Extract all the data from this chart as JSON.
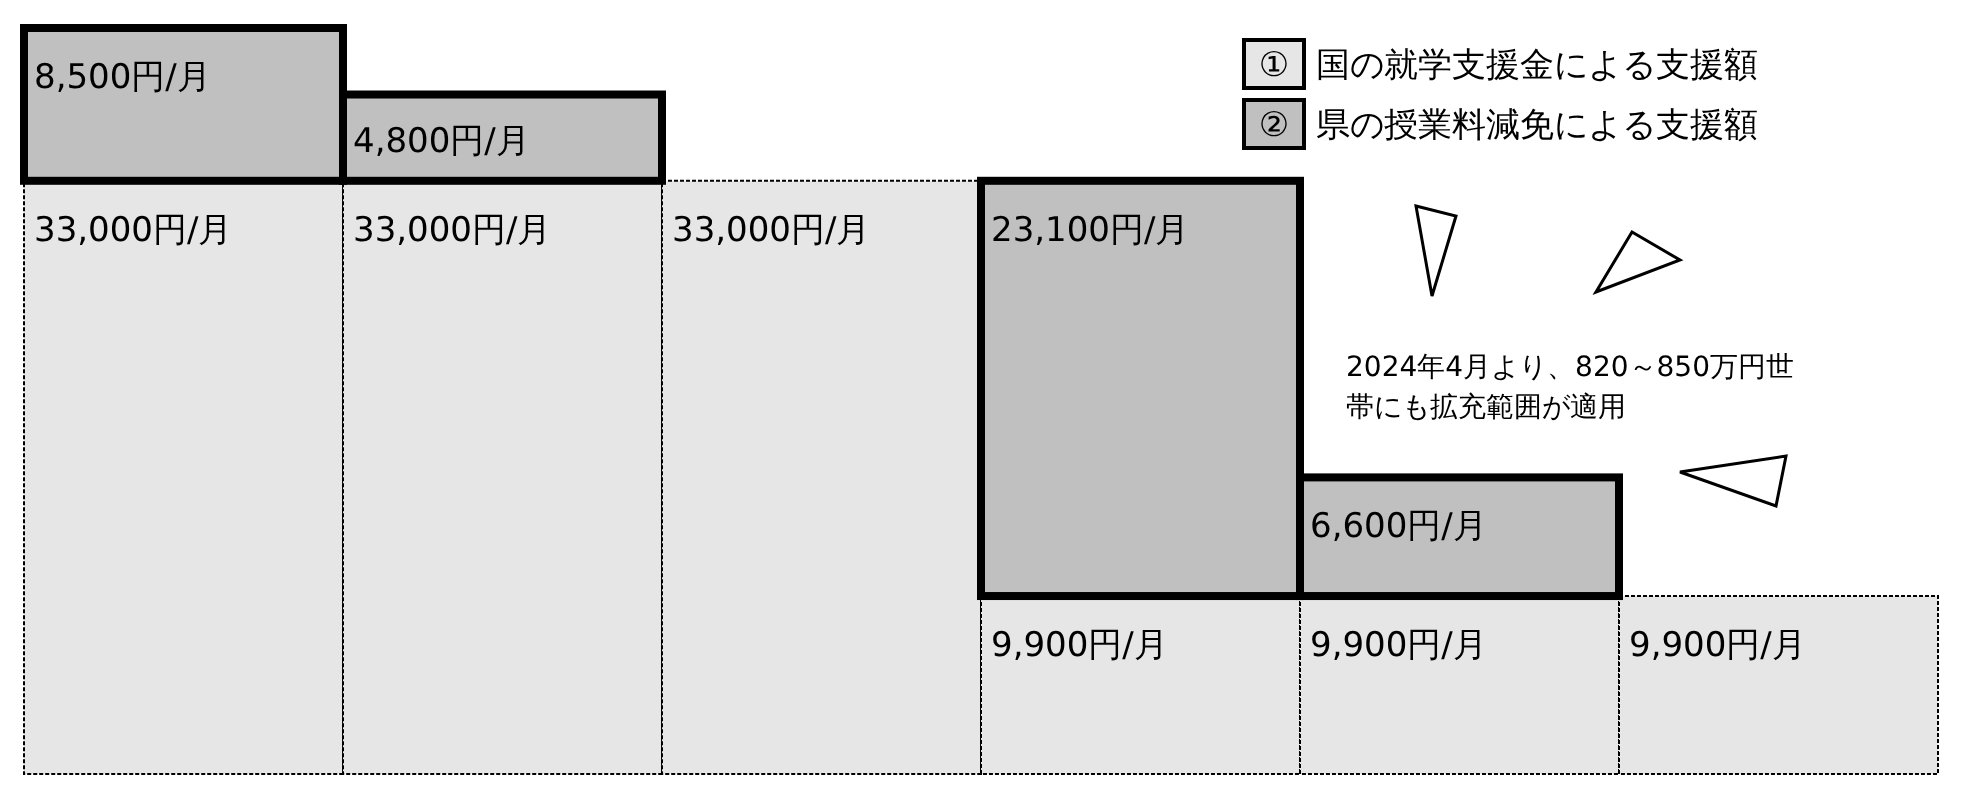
{
  "chart_data": {
    "type": "bar",
    "stacked": true,
    "legend": "top right",
    "categories": [
      null,
      null,
      null,
      null,
      null,
      null
    ],
    "series": [
      {
        "name": "国の就学支援金による支援額",
        "color": "#e6e6e6",
        "values": [
          33000,
          33000,
          33000,
          9900,
          9900,
          9900
        ],
        "value_labels": [
          "33,000円/月",
          "33,000円/月",
          "33,000円/月",
          "9,900円/月",
          "9,900円/月",
          "9,900円/月"
        ]
      },
      {
        "name": "県の授業料減免による支援額",
        "color": "#c0c0c0",
        "values": [
          8500,
          4800,
          null,
          23100,
          6600,
          null
        ],
        "value_labels": [
          "8,500円/月",
          "4,800円/月",
          null,
          "23,100円/月",
          "6,600円/月",
          null
        ]
      }
    ],
    "annotations": [
      "①",
      "②",
      "2024年4月より、820～850万円世帯にも拡充範囲が適用"
    ]
  }
}
